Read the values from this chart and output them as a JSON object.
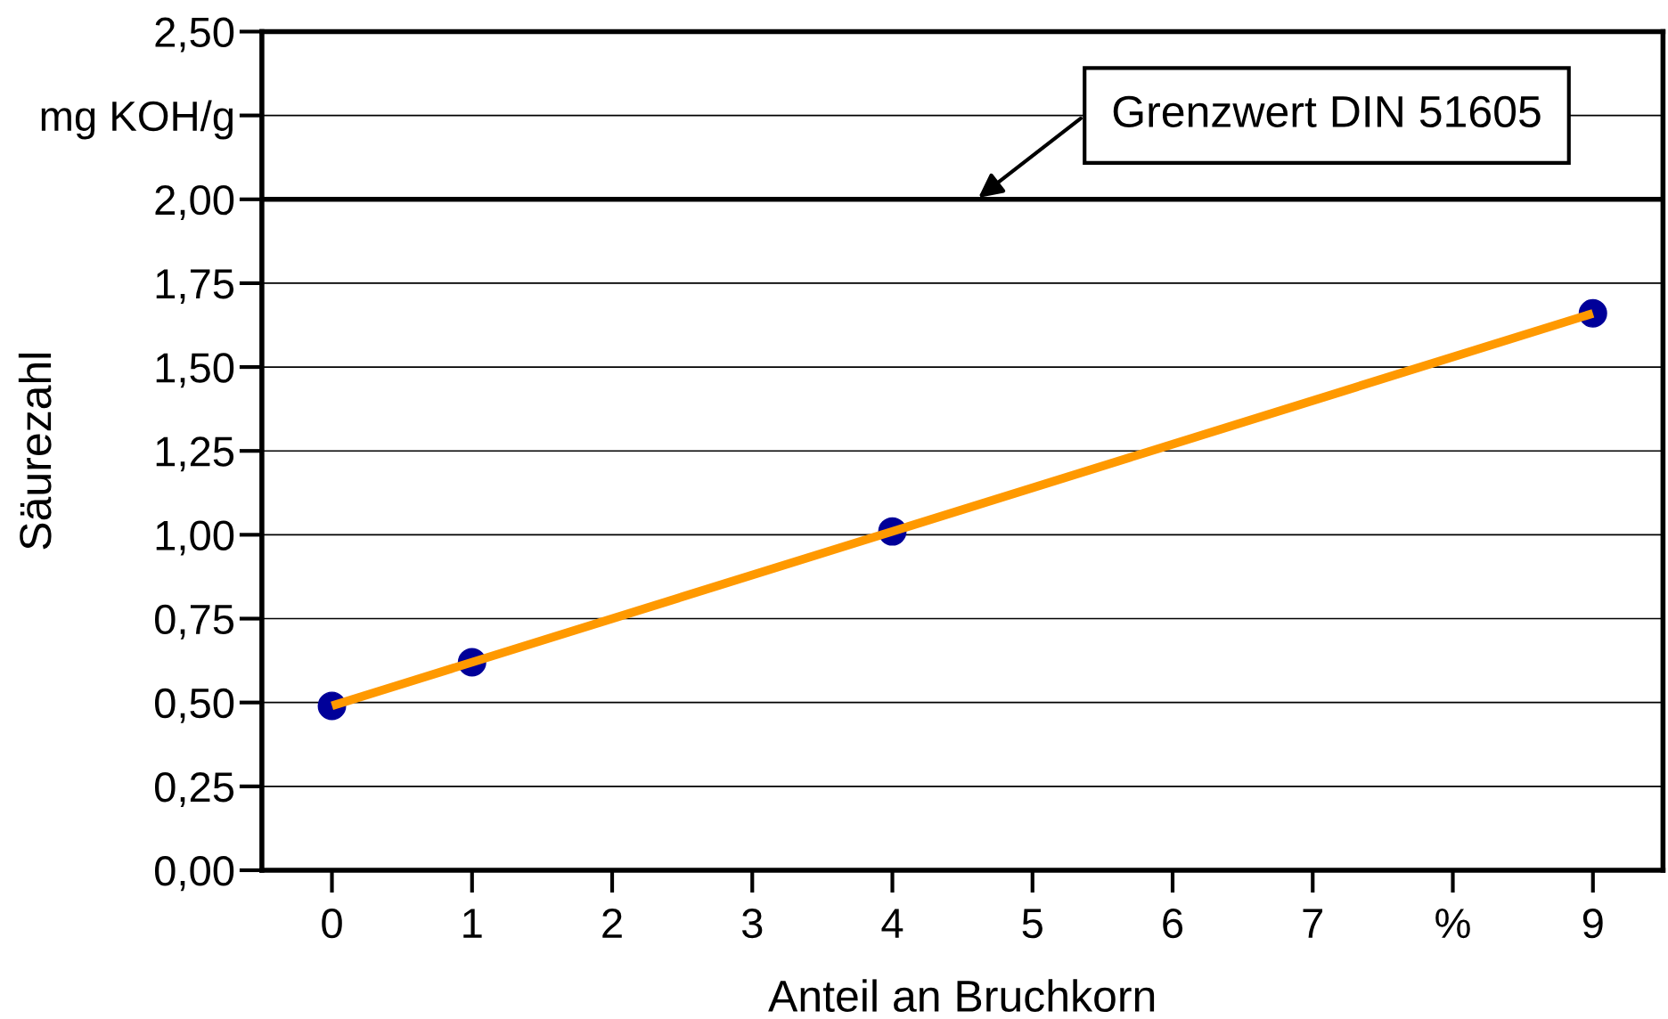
{
  "chart_data": {
    "type": "scatter",
    "xlabel": "Anteil an Bruchkorn",
    "ylabel": "Säurezahl",
    "x": [
      0,
      1,
      4,
      9
    ],
    "series": [
      {
        "color": "#000099",
        "values": [
          0.49,
          0.62,
          1.01,
          1.66
        ],
        "marker": "circle"
      },
      {
        "type": "line",
        "color": "#ff9900",
        "x": [
          0,
          9
        ],
        "values": [
          0.49,
          1.66
        ],
        "marker": "none",
        "line_style": "solid"
      }
    ],
    "xlim": [
      -0.5,
      9.5
    ],
    "xticks": [
      0,
      1,
      2,
      3,
      4,
      5,
      6,
      7,
      {
        "value": 8,
        "label": "%"
      },
      9
    ],
    "ylim": [
      0,
      2.5
    ],
    "yticks": [
      {
        "value": 0,
        "label": "0,00"
      },
      {
        "value": 0.25,
        "label": "0,25"
      },
      {
        "value": 0.5,
        "label": "0,50"
      },
      {
        "value": 0.75,
        "label": "0,75"
      },
      {
        "value": 1.0,
        "label": "1,00"
      },
      {
        "value": 1.25,
        "label": "1,25"
      },
      {
        "value": 1.5,
        "label": "1,50"
      },
      {
        "value": 1.75,
        "label": "1,75"
      },
      {
        "value": 2.0,
        "label": "2,00"
      },
      {
        "value": 2.25,
        "label": "mg KOH/g"
      },
      {
        "value": 2.5,
        "label": "2,50"
      }
    ],
    "ref_lines": [
      {
        "axis": "y",
        "value": 2.0,
        "color": "#000000",
        "line_style": "solid",
        "label": "Grenzwert DIN 51605"
      }
    ],
    "grid": "y",
    "legend": false
  }
}
